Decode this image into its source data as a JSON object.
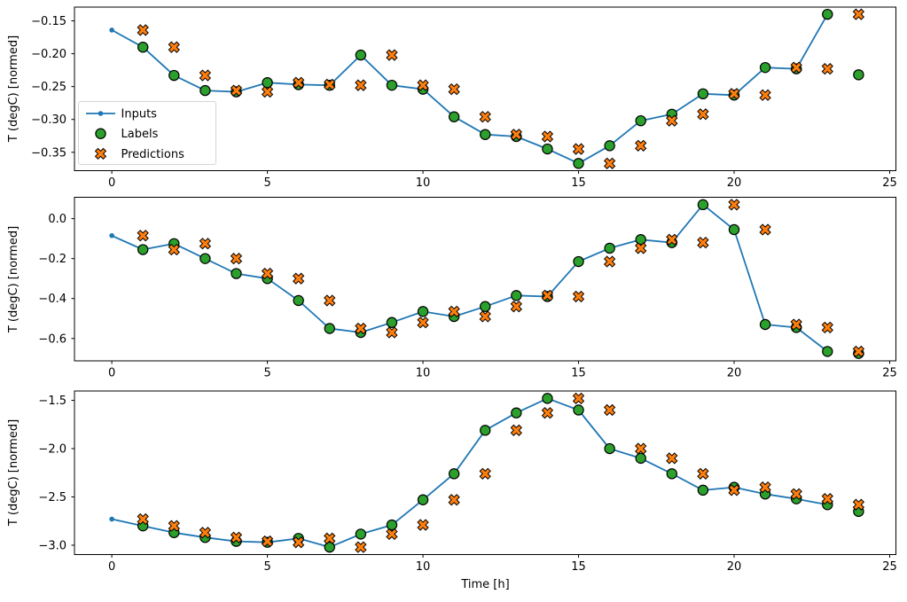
{
  "figure": {
    "background": "#ffffff",
    "xlabel": "Time [h]",
    "xlim": [
      -1.2,
      25.2
    ],
    "x_tick_values": [
      0,
      5,
      10,
      15,
      20,
      25
    ],
    "x_tick_labels": [
      "0",
      "5",
      "10",
      "15",
      "20",
      "25"
    ],
    "colors": {
      "inputs_line": "#1f77b4",
      "labels_marker": "#2ca02c",
      "predictions_marker": "#ff7f0e",
      "marker_edge": "#000000",
      "spine": "#000000",
      "text": "#000000",
      "legend_border": "#d5d5d5",
      "legend_fill": "#ffffff"
    },
    "legend": {
      "position": "lower left",
      "entries": [
        {
          "label": "Inputs",
          "marker": "line-dot",
          "color": "#1f77b4"
        },
        {
          "label": "Labels",
          "marker": "circle",
          "color": "#2ca02c",
          "edge_color": "#000000"
        },
        {
          "label": "Predictions",
          "marker": "x-cross",
          "color": "#ff7f0e",
          "edge_color": "#000000"
        }
      ]
    }
  },
  "chart_data": [
    {
      "type": "line",
      "ylabel": "T (degC) [normed]",
      "ylim": [
        -0.378,
        -0.129
      ],
      "ytick_values": [
        -0.15,
        -0.2,
        -0.25,
        -0.3,
        -0.35
      ],
      "ytick_labels": [
        "−0.15",
        "−0.20",
        "−0.25",
        "−0.30",
        "−0.35"
      ],
      "legend_visible": true,
      "series": [
        {
          "name": "Inputs",
          "style": "line-dot",
          "x": [
            0,
            1,
            2,
            3,
            4,
            5,
            6,
            7,
            8,
            9,
            10,
            11,
            12,
            13,
            14,
            15,
            16,
            17,
            18,
            19,
            20,
            21,
            22,
            23
          ],
          "values": [
            -0.164,
            -0.19,
            -0.233,
            -0.256,
            -0.258,
            -0.244,
            -0.247,
            -0.248,
            -0.202,
            -0.248,
            -0.254,
            -0.296,
            -0.323,
            -0.326,
            -0.345,
            -0.367,
            -0.34,
            -0.302,
            -0.292,
            -0.261,
            -0.263,
            -0.221,
            -0.223,
            -0.14
          ]
        },
        {
          "name": "Labels",
          "style": "circle",
          "x": [
            1,
            2,
            3,
            4,
            5,
            6,
            7,
            8,
            9,
            10,
            11,
            12,
            13,
            14,
            15,
            16,
            17,
            18,
            19,
            20,
            21,
            22,
            23,
            24
          ],
          "values": [
            -0.19,
            -0.233,
            -0.256,
            -0.258,
            -0.244,
            -0.247,
            -0.248,
            -0.202,
            -0.248,
            -0.254,
            -0.296,
            -0.323,
            -0.326,
            -0.345,
            -0.367,
            -0.34,
            -0.302,
            -0.292,
            -0.261,
            -0.263,
            -0.221,
            -0.223,
            -0.14,
            -0.232
          ]
        },
        {
          "name": "Predictions",
          "style": "x-cross",
          "x": [
            1,
            2,
            3,
            4,
            5,
            6,
            7,
            8,
            9,
            10,
            11,
            12,
            13,
            14,
            15,
            16,
            17,
            18,
            19,
            20,
            21,
            22,
            23,
            24
          ],
          "values": [
            -0.164,
            -0.19,
            -0.233,
            -0.256,
            -0.258,
            -0.244,
            -0.247,
            -0.248,
            -0.202,
            -0.248,
            -0.254,
            -0.296,
            -0.323,
            -0.326,
            -0.345,
            -0.367,
            -0.34,
            -0.302,
            -0.292,
            -0.261,
            -0.263,
            -0.221,
            -0.223,
            -0.14
          ]
        }
      ]
    },
    {
      "type": "line",
      "ylabel": "T (degC) [normed]",
      "ylim": [
        -0.712,
        0.107
      ],
      "ytick_values": [
        0.0,
        -0.2,
        -0.4,
        -0.6
      ],
      "ytick_labels": [
        "0.0",
        "−0.2",
        "−0.4",
        "−0.6"
      ],
      "legend_visible": false,
      "series": [
        {
          "name": "Inputs",
          "style": "line-dot",
          "x": [
            0,
            1,
            2,
            3,
            4,
            5,
            6,
            7,
            8,
            9,
            10,
            11,
            12,
            13,
            14,
            15,
            16,
            17,
            18,
            19,
            20,
            21,
            22,
            23
          ],
          "values": [
            -0.085,
            -0.155,
            -0.125,
            -0.2,
            -0.275,
            -0.3,
            -0.41,
            -0.55,
            -0.57,
            -0.52,
            -0.465,
            -0.49,
            -0.44,
            -0.385,
            -0.39,
            -0.215,
            -0.148,
            -0.105,
            -0.12,
            0.07,
            -0.055,
            -0.53,
            -0.545,
            -0.665
          ]
        },
        {
          "name": "Labels",
          "style": "circle",
          "x": [
            1,
            2,
            3,
            4,
            5,
            6,
            7,
            8,
            9,
            10,
            11,
            12,
            13,
            14,
            15,
            16,
            17,
            18,
            19,
            20,
            21,
            22,
            23,
            24
          ],
          "values": [
            -0.155,
            -0.125,
            -0.2,
            -0.275,
            -0.3,
            -0.41,
            -0.55,
            -0.57,
            -0.52,
            -0.465,
            -0.49,
            -0.44,
            -0.385,
            -0.39,
            -0.215,
            -0.148,
            -0.105,
            -0.12,
            0.07,
            -0.055,
            -0.53,
            -0.545,
            -0.665,
            -0.675
          ]
        },
        {
          "name": "Predictions",
          "style": "x-cross",
          "x": [
            1,
            2,
            3,
            4,
            5,
            6,
            7,
            8,
            9,
            10,
            11,
            12,
            13,
            14,
            15,
            16,
            17,
            18,
            19,
            20,
            21,
            22,
            23,
            24
          ],
          "values": [
            -0.085,
            -0.155,
            -0.125,
            -0.2,
            -0.275,
            -0.3,
            -0.41,
            -0.55,
            -0.57,
            -0.52,
            -0.465,
            -0.49,
            -0.44,
            -0.385,
            -0.39,
            -0.215,
            -0.148,
            -0.105,
            -0.12,
            0.07,
            -0.055,
            -0.53,
            -0.545,
            -0.665
          ]
        }
      ]
    },
    {
      "type": "line",
      "ylabel": "T (degC) [normed]",
      "ylim": [
        -3.097,
        -1.403
      ],
      "ytick_values": [
        -1.5,
        -2.0,
        -2.5,
        -3.0
      ],
      "ytick_labels": [
        "−1.5",
        "−2.0",
        "−2.5",
        "−3.0"
      ],
      "legend_visible": false,
      "series": [
        {
          "name": "Inputs",
          "style": "line-dot",
          "x": [
            0,
            1,
            2,
            3,
            4,
            5,
            6,
            7,
            8,
            9,
            10,
            11,
            12,
            13,
            14,
            15,
            16,
            17,
            18,
            19,
            20,
            21,
            22,
            23
          ],
          "values": [
            -2.73,
            -2.8,
            -2.87,
            -2.92,
            -2.96,
            -2.97,
            -2.93,
            -3.02,
            -2.885,
            -2.79,
            -2.53,
            -2.26,
            -1.81,
            -1.63,
            -1.48,
            -1.6,
            -2.0,
            -2.1,
            -2.26,
            -2.43,
            -2.4,
            -2.47,
            -2.52,
            -2.58
          ]
        },
        {
          "name": "Labels",
          "style": "circle",
          "x": [
            1,
            2,
            3,
            4,
            5,
            6,
            7,
            8,
            9,
            10,
            11,
            12,
            13,
            14,
            15,
            16,
            17,
            18,
            19,
            20,
            21,
            22,
            23,
            24
          ],
          "values": [
            -2.8,
            -2.87,
            -2.92,
            -2.96,
            -2.97,
            -2.93,
            -3.02,
            -2.885,
            -2.79,
            -2.53,
            -2.26,
            -1.81,
            -1.63,
            -1.48,
            -1.6,
            -2.0,
            -2.1,
            -2.26,
            -2.43,
            -2.4,
            -2.47,
            -2.52,
            -2.58,
            -2.65
          ]
        },
        {
          "name": "Predictions",
          "style": "x-cross",
          "x": [
            1,
            2,
            3,
            4,
            5,
            6,
            7,
            8,
            9,
            10,
            11,
            12,
            13,
            14,
            15,
            16,
            17,
            18,
            19,
            20,
            21,
            22,
            23,
            24
          ],
          "values": [
            -2.73,
            -2.8,
            -2.87,
            -2.92,
            -2.96,
            -2.97,
            -2.93,
            -3.02,
            -2.885,
            -2.79,
            -2.53,
            -2.26,
            -1.81,
            -1.63,
            -1.48,
            -1.6,
            -2.0,
            -2.1,
            -2.26,
            -2.43,
            -2.4,
            -2.47,
            -2.52,
            -2.58
          ]
        }
      ]
    }
  ]
}
